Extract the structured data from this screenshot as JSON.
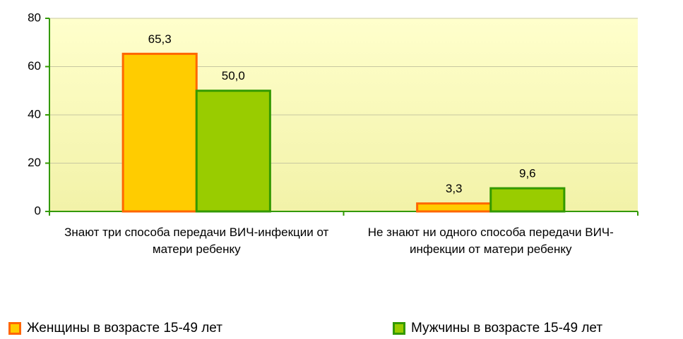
{
  "chart_data": {
    "type": "bar",
    "categories": [
      "Знают три способа передачи ВИЧ-инфекции от матери ребенку",
      "Не знают ни одного способа передачи ВИЧ-инфекции от матери ребенку"
    ],
    "series": [
      {
        "name": "Женщины в возрасте 15-49 лет",
        "color": "#ffcc00",
        "edge": "#ff6600",
        "values": [
          65.3,
          3.3
        ],
        "value_labels": [
          "65,3",
          "3,3"
        ]
      },
      {
        "name": "Мужчины в возрасте 15-49 лет",
        "color": "#99cc00",
        "edge": "#339900",
        "values": [
          50.0,
          9.6
        ],
        "value_labels": [
          "50,0",
          "9,6"
        ]
      }
    ],
    "ylim": [
      0,
      80
    ],
    "yticks": [
      0,
      20,
      40,
      60,
      80
    ],
    "grid": true
  }
}
